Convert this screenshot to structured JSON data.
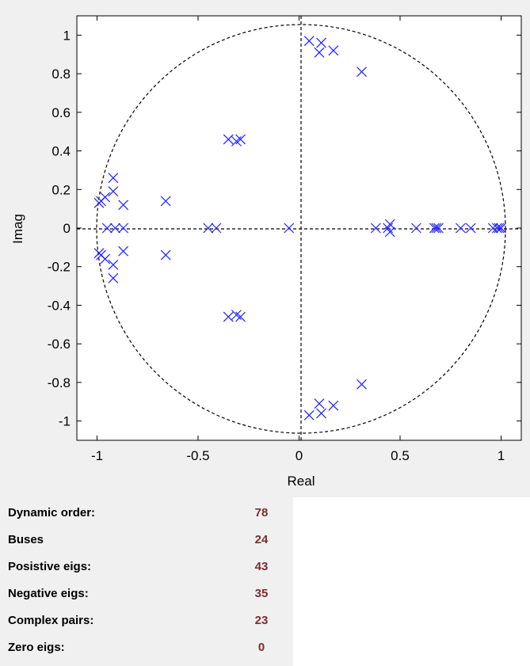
{
  "chart_data": {
    "type": "scatter",
    "title": "",
    "xlabel": "Real",
    "ylabel": "Imag",
    "xlim": [
      -1.1,
      1.1
    ],
    "ylim": [
      -1.1,
      1.1
    ],
    "x_ticks": [
      -1,
      -0.5,
      0,
      0.5,
      1
    ],
    "x_tick_labels": [
      "-1",
      "-0.5",
      "0",
      "0.5",
      "1"
    ],
    "y_ticks": [
      1,
      0.8,
      0.6,
      0.4,
      0.2,
      0,
      -0.2,
      -0.4,
      -0.6,
      -0.8,
      -1
    ],
    "y_tick_labels": [
      "1",
      "0.8",
      "0.6",
      "0.4",
      "0.2",
      "0",
      "-0.2",
      "-0.4",
      "-0.6",
      "-0.8",
      "-1"
    ],
    "grid": false,
    "marker": "x",
    "marker_color": "#1f1fff",
    "unit_circle": true,
    "points": [
      {
        "x": 0.05,
        "y": 0.97
      },
      {
        "x": 0.11,
        "y": 0.96
      },
      {
        "x": 0.1,
        "y": 0.91
      },
      {
        "x": 0.17,
        "y": 0.92
      },
      {
        "x": 0.31,
        "y": 0.81
      },
      {
        "x": -0.35,
        "y": 0.46
      },
      {
        "x": -0.31,
        "y": 0.45
      },
      {
        "x": -0.29,
        "y": 0.46
      },
      {
        "x": -0.92,
        "y": 0.26
      },
      {
        "x": -0.92,
        "y": 0.19
      },
      {
        "x": -0.96,
        "y": 0.16
      },
      {
        "x": -0.98,
        "y": 0.14
      },
      {
        "x": -0.99,
        "y": 0.13
      },
      {
        "x": -0.87,
        "y": 0.12
      },
      {
        "x": -0.66,
        "y": 0.14
      },
      {
        "x": -0.95,
        "y": 0.0
      },
      {
        "x": -0.91,
        "y": 0.0
      },
      {
        "x": -0.87,
        "y": 0.0
      },
      {
        "x": -0.45,
        "y": 0.0
      },
      {
        "x": -0.41,
        "y": 0.0
      },
      {
        "x": -0.05,
        "y": 0.0
      },
      {
        "x": 0.38,
        "y": 0.0
      },
      {
        "x": 0.44,
        "y": 0.0
      },
      {
        "x": 0.45,
        "y": 0.02
      },
      {
        "x": 0.45,
        "y": -0.02
      },
      {
        "x": 0.58,
        "y": 0.0
      },
      {
        "x": 0.67,
        "y": 0.0
      },
      {
        "x": 0.68,
        "y": 0.0
      },
      {
        "x": 0.69,
        "y": 0.0
      },
      {
        "x": 0.8,
        "y": 0.0
      },
      {
        "x": 0.85,
        "y": 0.0
      },
      {
        "x": 0.96,
        "y": 0.0
      },
      {
        "x": 0.98,
        "y": 0.0
      },
      {
        "x": 0.99,
        "y": 0.0
      },
      {
        "x": 1.0,
        "y": 0.0
      },
      {
        "x": -0.99,
        "y": -0.13
      },
      {
        "x": -0.98,
        "y": -0.14
      },
      {
        "x": -0.96,
        "y": -0.16
      },
      {
        "x": -0.92,
        "y": -0.19
      },
      {
        "x": -0.92,
        "y": -0.26
      },
      {
        "x": -0.87,
        "y": -0.12
      },
      {
        "x": -0.66,
        "y": -0.14
      },
      {
        "x": -0.35,
        "y": -0.46
      },
      {
        "x": -0.31,
        "y": -0.45
      },
      {
        "x": -0.29,
        "y": -0.46
      },
      {
        "x": 0.31,
        "y": -0.81
      },
      {
        "x": 0.05,
        "y": -0.97
      },
      {
        "x": 0.11,
        "y": -0.96
      },
      {
        "x": 0.1,
        "y": -0.91
      },
      {
        "x": 0.17,
        "y": -0.92
      }
    ]
  },
  "stats": [
    {
      "label": "Dynamic order:",
      "value": "78"
    },
    {
      "label": "Buses",
      "value": "24"
    },
    {
      "label": "Posistive eigs:",
      "value": "43"
    },
    {
      "label": "Negative eigs:",
      "value": "35"
    },
    {
      "label": "Complex pairs:",
      "value": "23"
    },
    {
      "label": "Zero eigs:",
      "value": "0"
    }
  ]
}
